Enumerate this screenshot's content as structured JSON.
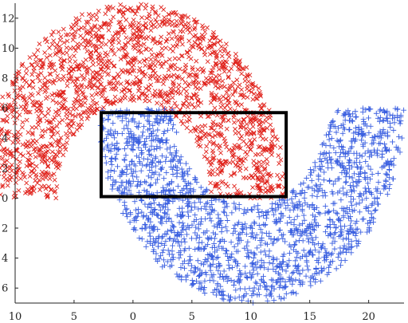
{
  "chart_data": {
    "type": "scatter",
    "title": "",
    "xlabel": "",
    "ylabel": "",
    "xlim": [
      -10,
      23
    ],
    "ylim": [
      -7,
      13
    ],
    "grid": false,
    "legend": "none",
    "x_ticks": [
      {
        "value": -10,
        "label": "10"
      },
      {
        "value": -5,
        "label": "5"
      },
      {
        "value": 0,
        "label": "0"
      },
      {
        "value": 5,
        "label": "5"
      },
      {
        "value": 10,
        "label": "10"
      },
      {
        "value": 15,
        "label": "15"
      },
      {
        "value": 20,
        "label": "20"
      }
    ],
    "y_ticks": [
      {
        "value": -6,
        "label": "6"
      },
      {
        "value": -4,
        "label": "4"
      },
      {
        "value": -2,
        "label": "2"
      },
      {
        "value": 0,
        "label": "0"
      },
      {
        "value": 2,
        "label": "2"
      },
      {
        "value": 4,
        "label": "4"
      },
      {
        "value": 6,
        "label": "6"
      },
      {
        "value": 8,
        "label": "8"
      },
      {
        "value": 10,
        "label": "10"
      },
      {
        "value": 12,
        "label": "12"
      }
    ],
    "series": [
      {
        "marker": "x",
        "color": "#e0231c",
        "shape": "upper-moon",
        "center": [
          0,
          0
        ],
        "inner_radius": 6.5,
        "outer_radius": 13,
        "angle_range_deg": [
          0,
          180
        ],
        "approx_points": 1800
      },
      {
        "marker": "+",
        "color": "#3a5fe0",
        "shape": "lower-moon",
        "center": [
          10,
          6
        ],
        "inner_radius": 6.5,
        "outer_radius": 13,
        "angle_range_deg": [
          180,
          360
        ],
        "approx_points": 1800
      }
    ],
    "annotations": [
      {
        "type": "rectangle",
        "x0": -2.7,
        "y0": 0.1,
        "x1": 13,
        "y1": 5.7,
        "color": "#000000"
      }
    ]
  }
}
